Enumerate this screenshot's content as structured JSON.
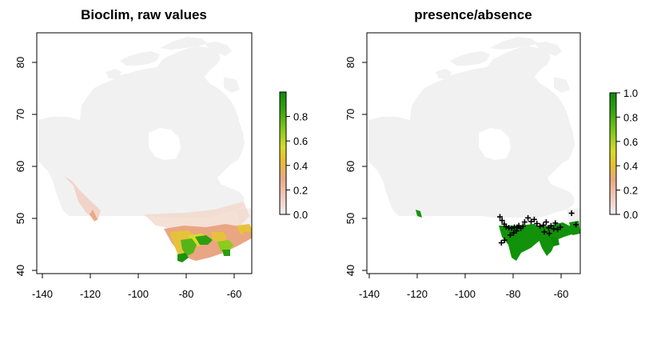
{
  "colors": {
    "land_base": "#f1f1f1",
    "border": "#000000",
    "scale": [
      "#f2f2f2",
      "#f1c4b2",
      "#e9a27c",
      "#e8c02f",
      "#d6e02a",
      "#73c81b",
      "#2b9d0f",
      "#0f8a07"
    ],
    "points": "#000000"
  },
  "panels": [
    {
      "title": "Bioclim, raw values",
      "x_ticks": [
        "-140",
        "-120",
        "-100",
        "-80",
        "-60"
      ],
      "y_ticks": [
        "40",
        "50",
        "60",
        "70",
        "80"
      ],
      "legend_ticks": [
        "0.0",
        "0.2",
        "0.4",
        "0.6",
        "0.8"
      ],
      "legend_range": [
        0,
        1
      ]
    },
    {
      "title": "presence/absence",
      "x_ticks": [
        "-140",
        "-120",
        "-100",
        "-80",
        "-60"
      ],
      "y_ticks": [
        "40",
        "50",
        "60",
        "70",
        "80"
      ],
      "legend_ticks": [
        "0.0",
        "0.2",
        "0.4",
        "0.6",
        "0.8",
        "1.0"
      ],
      "legend_range": [
        0,
        1
      ]
    }
  ],
  "map_extent": {
    "lon": [
      -143,
      -52
    ],
    "lat": [
      40.5,
      84.5
    ]
  },
  "presence_points": [
    [
      -85.5,
      50.3
    ],
    [
      -84.6,
      49.6
    ],
    [
      -83.7,
      48.9
    ],
    [
      -82.9,
      48.4
    ],
    [
      -81.8,
      48.2
    ],
    [
      -80.6,
      48.1
    ],
    [
      -79.5,
      48.3
    ],
    [
      -78.4,
      48.3
    ],
    [
      -77.6,
      48.6
    ],
    [
      -76.8,
      48.1
    ],
    [
      -75.9,
      48.5
    ],
    [
      -75.2,
      49.3
    ],
    [
      -73.8,
      50.1
    ],
    [
      -72.5,
      49.4
    ],
    [
      -71.2,
      49.8
    ],
    [
      -70.1,
      49.0
    ],
    [
      -68.8,
      48.5
    ],
    [
      -67.4,
      48.7
    ],
    [
      -66.2,
      49.3
    ],
    [
      -65.2,
      48.2
    ],
    [
      -64.2,
      48.6
    ],
    [
      -63.1,
      48.0
    ],
    [
      -62.4,
      49.1
    ],
    [
      -61.5,
      47.9
    ],
    [
      -60.3,
      48.3
    ],
    [
      -55.6,
      51.0
    ],
    [
      -53.8,
      48.8
    ],
    [
      -83.6,
      45.8
    ],
    [
      -84.9,
      45.3
    ],
    [
      -81.2,
      46.8
    ],
    [
      -79.8,
      47.2
    ],
    [
      -78.6,
      47.6
    ],
    [
      -67.0,
      47.4
    ],
    [
      -64.9,
      47.1
    ]
  ]
}
